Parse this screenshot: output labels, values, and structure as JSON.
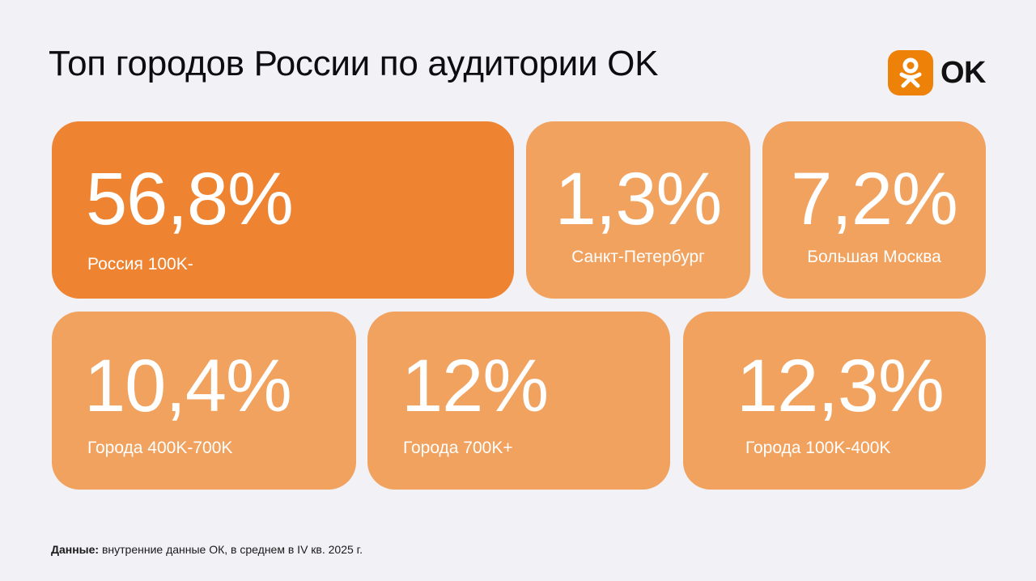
{
  "title": "Топ городов России по аудитории OK",
  "logo": {
    "text": "OK",
    "icon": "odnoklassniki-icon",
    "color": "#ee8208"
  },
  "colors": {
    "primary_card": "#ee8432",
    "secondary_card": "#f1a25e",
    "background": "#f1f1f6"
  },
  "cards": [
    {
      "value": "56,8%",
      "label": "Россия 100K-"
    },
    {
      "value": "1,3%",
      "label": "Санкт-Петербург"
    },
    {
      "value": "7,2%",
      "label": "Большая Москва"
    },
    {
      "value": "10,4%",
      "label": "Города 400K-700K"
    },
    {
      "value": "12%",
      "label": "Города 700K+"
    },
    {
      "value": "12,3%",
      "label": "Города 100K-400K"
    }
  ],
  "footnote": {
    "bold": "Данные:",
    "text": " внутренние данные ОК, в среднем в IV кв. 2025 г."
  }
}
